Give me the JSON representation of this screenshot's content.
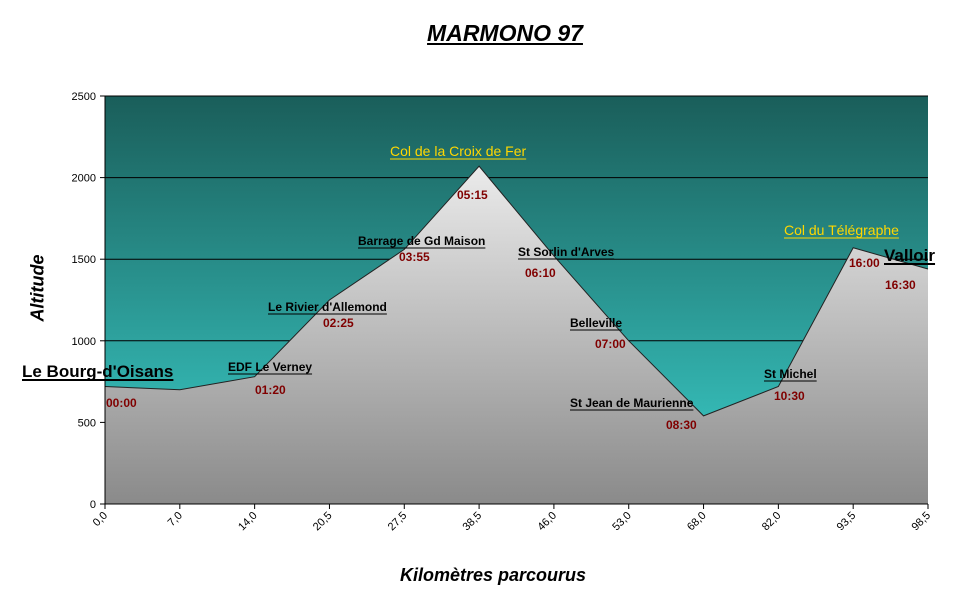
{
  "chart_data": {
    "type": "area",
    "title": "MARMONO 97",
    "xlabel": "Kilomètres parcourus",
    "ylabel": "Altitude",
    "ylim": [
      0,
      2500
    ],
    "yticks": [
      0,
      500,
      1000,
      1500,
      2000,
      2500
    ],
    "grid": true,
    "x": [
      "0,0",
      "7,0",
      "14,0",
      "20,5",
      "27,5",
      "38,5",
      "46,0",
      "53,0",
      "68,0",
      "82,0",
      "93,5",
      "98,5"
    ],
    "values": [
      720,
      700,
      780,
      1250,
      1560,
      2070,
      1520,
      1000,
      540,
      720,
      1570,
      1440
    ],
    "colors": {
      "band_top": "#1a5e5a",
      "band_bottom": "#3bd0cc",
      "profile_top": "#ffffff",
      "profile_bottom": "#8a8a8a",
      "time": "#800000",
      "pass": "#ffd700"
    },
    "places": [
      {
        "name": "Le Bourg-d'Oisans",
        "style": "big"
      },
      {
        "name": "EDF Le Verney",
        "style": "place"
      },
      {
        "name": "Le Rivier d'Allemond",
        "style": "place"
      },
      {
        "name": "Barrage de Gd Maison",
        "style": "place"
      },
      {
        "name": "Col  de la Croix de Fer",
        "style": "pass"
      },
      {
        "name": "St Sorlin d'Arves",
        "style": "place"
      },
      {
        "name": "Belleville",
        "style": "place"
      },
      {
        "name": "St Jean de Maurienne",
        "style": "place"
      },
      {
        "name": "St Michel",
        "style": "place"
      },
      {
        "name": "Col du Télégraphe",
        "style": "pass"
      },
      {
        "name": "Valloir",
        "style": "big"
      }
    ],
    "times": [
      "00:00",
      "01:20",
      "02:25",
      "03:55",
      "05:15",
      "06:10",
      "07:00",
      "08:30",
      "10:30",
      "16:00",
      "16:30"
    ]
  }
}
